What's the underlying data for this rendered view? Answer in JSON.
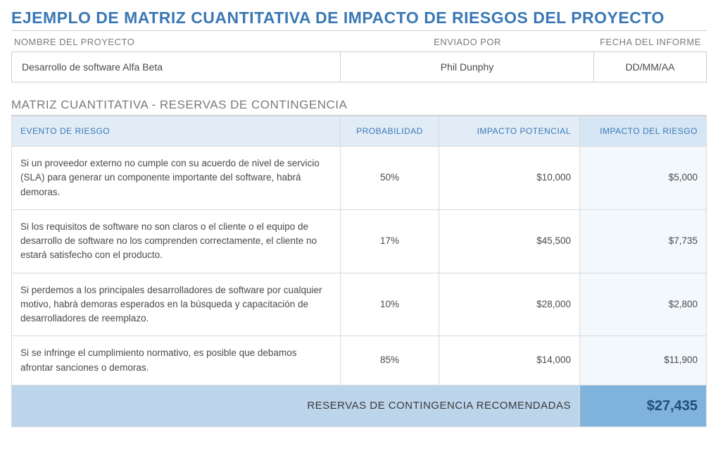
{
  "title": "EJEMPLO DE MATRIZ CUANTITATIVA DE IMPACTO DE RIESGOS DEL PROYECTO",
  "meta": {
    "project_label": "NOMBRE DEL PROYECTO",
    "project_value": "Desarrollo de software Alfa Beta",
    "submitter_label": "ENVIADO POR",
    "submitter_value": "Phil Dunphy",
    "date_label": "FECHA DEL INFORME",
    "date_value": "DD/MM/AA"
  },
  "section_title": "MATRIZ CUANTITATIVA - RESERVAS DE CONTINGENCIA",
  "columns": {
    "event": "EVENTO DE RIESGO",
    "prob": "PROBABILIDAD",
    "impact": "IMPACTO POTENCIAL",
    "risk": "IMPACTO DEL RIESGO"
  },
  "rows": [
    {
      "event": "Si un proveedor externo no cumple con su acuerdo de nivel de servicio (SLA) para generar un componente importante del software, habrá demoras.",
      "prob": "50%",
      "impact": "$10,000",
      "risk": "$5,000"
    },
    {
      "event": "Si los requisitos de software no son claros o el cliente o el equipo de desarrollo de software no los comprenden correctamente, el cliente no estará satisfecho con el producto.",
      "prob": "17%",
      "impact": "$45,500",
      "risk": "$7,735"
    },
    {
      "event": "Si perdemos a los principales desarrolladores de software por cualquier motivo, habrá demoras esperados en la búsqueda y capacitación de desarrolladores de reemplazo.",
      "prob": "10%",
      "impact": "$28,000",
      "risk": "$2,800"
    },
    {
      "event": "Si se infringe el cumplimiento normativo, es posible que debamos afrontar sanciones o demoras.",
      "prob": "85%",
      "impact": "$14,000",
      "risk": "$11,900"
    }
  ],
  "total": {
    "label": "RESERVAS DE CONTINGENCIA RECOMENDADAS",
    "value": "$27,435"
  },
  "colors": {
    "title": "#3a78b5",
    "header_bg": "#e1ecf7",
    "header_risk_bg": "#d6e6f4",
    "row_risk_bg": "#f3f8fc",
    "total_bg": "#bcd5eb",
    "total_value_bg": "#7fb3dc",
    "total_value_color": "#1f4e79",
    "border": "#cfcfcf",
    "text": "#4a4a4a",
    "label_muted": "#7a7a7a"
  }
}
